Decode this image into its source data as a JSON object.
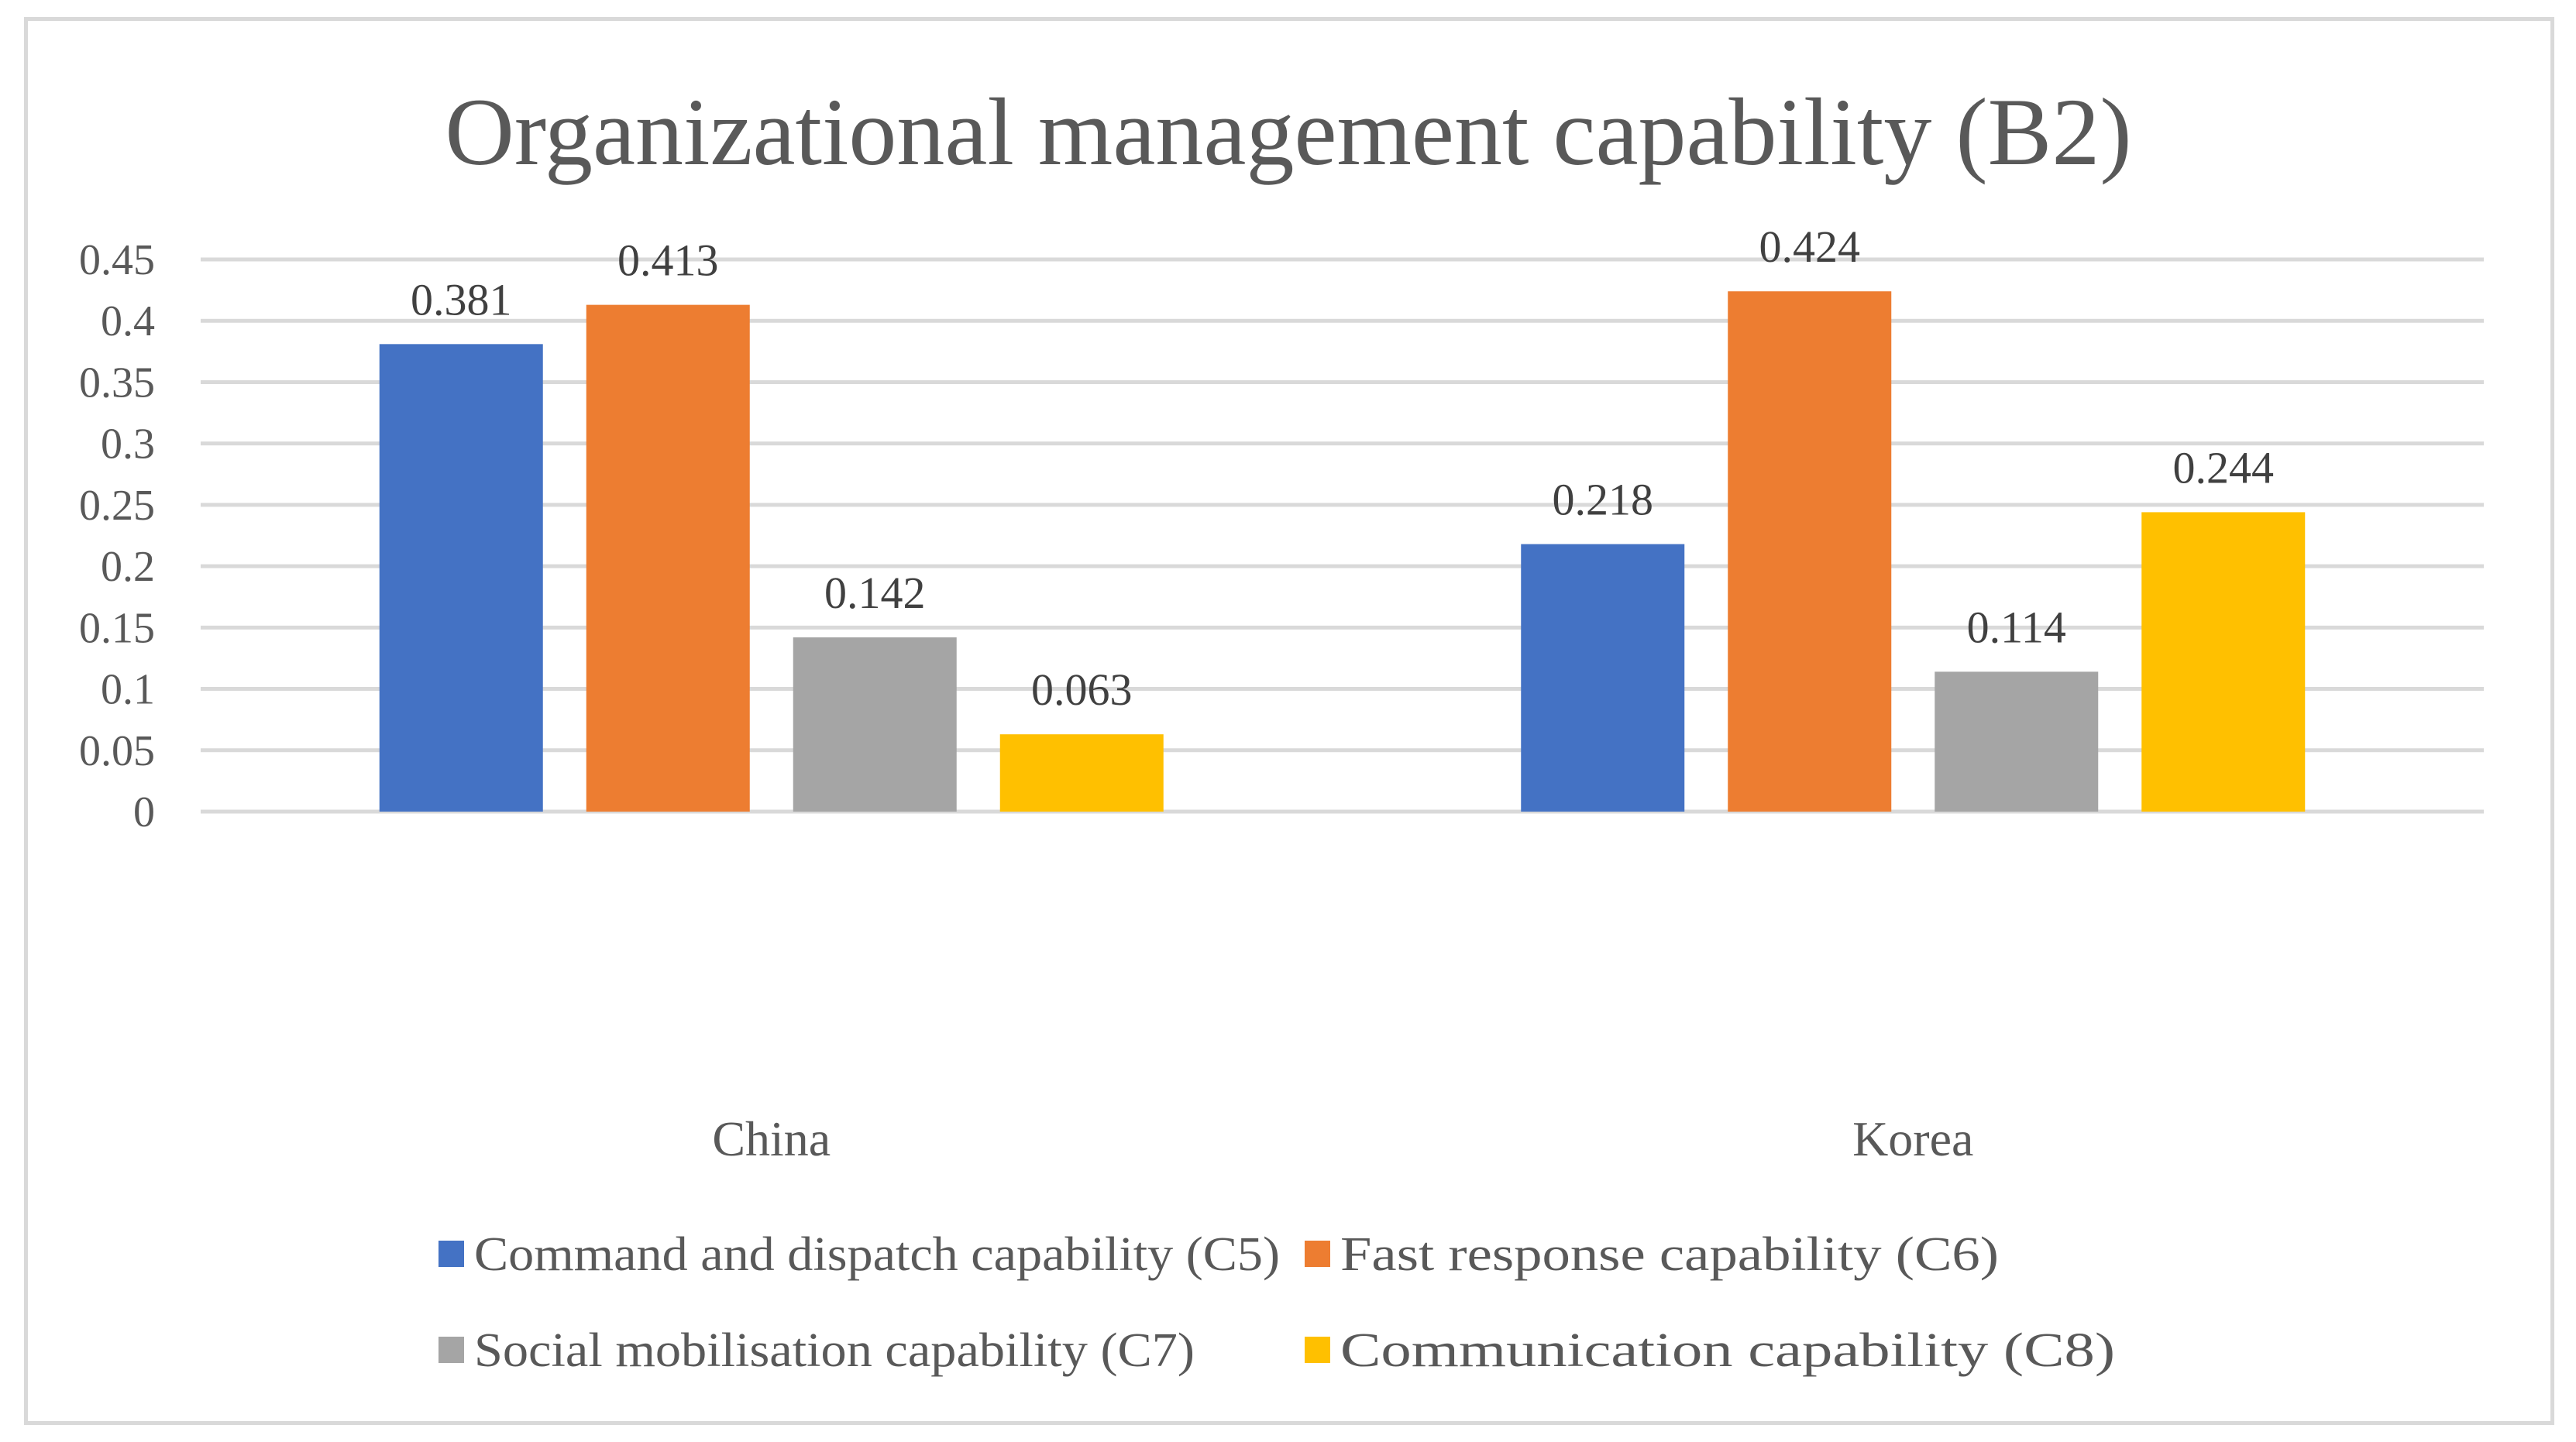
{
  "chart_data": {
    "type": "bar",
    "title": "Organizational management capability (B2)",
    "categories": [
      "China",
      "Korea"
    ],
    "series": [
      {
        "name": "Command and dispatch capability (C5)",
        "color": "#4472C4",
        "values": [
          0.381,
          0.218
        ]
      },
      {
        "name": "Fast response capability (C6)",
        "color": "#ED7D31",
        "values": [
          0.413,
          0.424
        ]
      },
      {
        "name": "Social mobilisation capability (C7)",
        "color": "#A5A5A5",
        "values": [
          0.142,
          0.114
        ]
      },
      {
        "name": "Communication capability (C8)",
        "color": "#FFC000",
        "values": [
          0.063,
          0.244
        ]
      }
    ],
    "data_labels": [
      [
        "0.381",
        "0.218"
      ],
      [
        "0.413",
        "0.424"
      ],
      [
        "0.142",
        "0.114"
      ],
      [
        "0.063",
        "0.244"
      ]
    ],
    "yticks": [
      "0",
      "0.05",
      "0.1",
      "0.15",
      "0.2",
      "0.25",
      "0.3",
      "0.35",
      "0.4",
      "0.45"
    ],
    "ylim": [
      0,
      0.45
    ],
    "xlabel": "",
    "ylabel": "",
    "grid": true,
    "legend_position": "bottom"
  }
}
